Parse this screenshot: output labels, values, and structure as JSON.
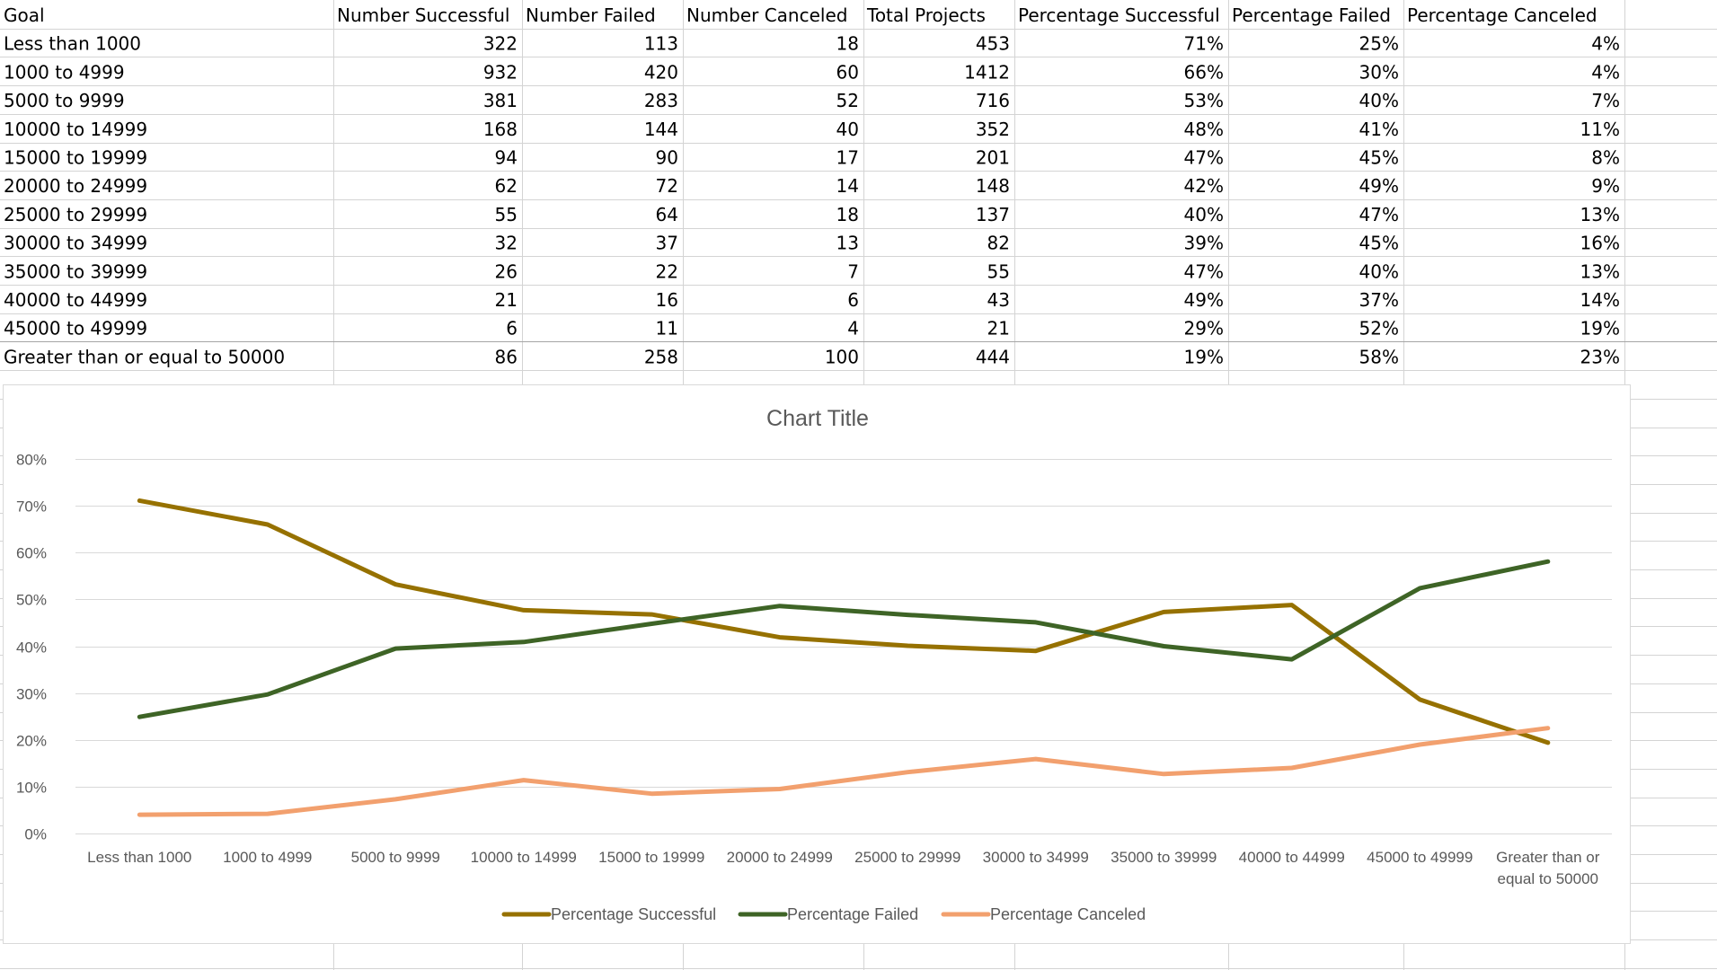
{
  "table": {
    "headers": [
      "Goal",
      "Number Successful",
      "Number Failed",
      "Number Canceled",
      "Total Projects",
      "Percentage Successful",
      "Percentage Failed",
      "Percentage Canceled"
    ],
    "rows": [
      [
        "Less than 1000",
        "322",
        "113",
        "18",
        "453",
        "71%",
        "25%",
        "4%"
      ],
      [
        "1000 to 4999",
        "932",
        "420",
        "60",
        "1412",
        "66%",
        "30%",
        "4%"
      ],
      [
        "5000 to 9999",
        "381",
        "283",
        "52",
        "716",
        "53%",
        "40%",
        "7%"
      ],
      [
        "10000 to 14999",
        "168",
        "144",
        "40",
        "352",
        "48%",
        "41%",
        "11%"
      ],
      [
        "15000 to 19999",
        "94",
        "90",
        "17",
        "201",
        "47%",
        "45%",
        "8%"
      ],
      [
        "20000 to 24999",
        "62",
        "72",
        "14",
        "148",
        "42%",
        "49%",
        "9%"
      ],
      [
        "25000 to 29999",
        "55",
        "64",
        "18",
        "137",
        "40%",
        "47%",
        "13%"
      ],
      [
        "30000 to 34999",
        "32",
        "37",
        "13",
        "82",
        "39%",
        "45%",
        "16%"
      ],
      [
        "35000 to 39999",
        "26",
        "22",
        "7",
        "55",
        "47%",
        "40%",
        "13%"
      ],
      [
        "40000 to 44999",
        "21",
        "16",
        "6",
        "43",
        "49%",
        "37%",
        "14%"
      ],
      [
        "45000 to 49999",
        "6",
        "11",
        "4",
        "21",
        "29%",
        "52%",
        "19%"
      ],
      [
        "Greater than or equal to 50000",
        "86",
        "258",
        "100",
        "444",
        "19%",
        "58%",
        "23%"
      ]
    ]
  },
  "chart_data": {
    "type": "line",
    "title": "Chart Title",
    "categories": [
      "Less than 1000",
      "1000 to 4999",
      "5000 to 9999",
      "10000 to 14999",
      "15000 to 19999",
      "20000 to 24999",
      "25000 to 29999",
      "30000 to 34999",
      "35000 to 39999",
      "40000 to 44999",
      "45000 to 49999",
      "Greater than or equal to 50000"
    ],
    "category_label_lines": [
      [
        "Less than 1000"
      ],
      [
        "1000 to 4999"
      ],
      [
        "5000 to 9999"
      ],
      [
        "10000 to 14999"
      ],
      [
        "15000 to 19999"
      ],
      [
        "20000 to 24999"
      ],
      [
        "25000 to 29999"
      ],
      [
        "30000 to 34999"
      ],
      [
        "35000 to 39999"
      ],
      [
        "40000 to 44999"
      ],
      [
        "45000 to 49999"
      ],
      [
        "Greater than or",
        "equal to 50000"
      ]
    ],
    "ylim": [
      0,
      0.8
    ],
    "yticks": [
      0,
      0.1,
      0.2,
      0.3,
      0.4,
      0.5,
      0.6,
      0.7,
      0.8
    ],
    "ytick_labels": [
      "0%",
      "10%",
      "20%",
      "30%",
      "40%",
      "50%",
      "60%",
      "70%",
      "80%"
    ],
    "grid": true,
    "legend_position": "bottom",
    "series": [
      {
        "name": "Percentage Successful",
        "color": "#967100",
        "values": [
          0.711,
          0.66,
          0.532,
          0.477,
          0.468,
          0.419,
          0.401,
          0.39,
          0.473,
          0.488,
          0.286,
          0.194
        ]
      },
      {
        "name": "Percentage Failed",
        "color": "#3e6426",
        "values": [
          0.249,
          0.297,
          0.395,
          0.409,
          0.448,
          0.486,
          0.467,
          0.451,
          0.4,
          0.372,
          0.524,
          0.581
        ]
      },
      {
        "name": "Percentage Canceled",
        "color": "#f2a06e",
        "values": [
          0.04,
          0.042,
          0.073,
          0.114,
          0.085,
          0.095,
          0.131,
          0.159,
          0.127,
          0.14,
          0.19,
          0.225
        ]
      }
    ]
  }
}
